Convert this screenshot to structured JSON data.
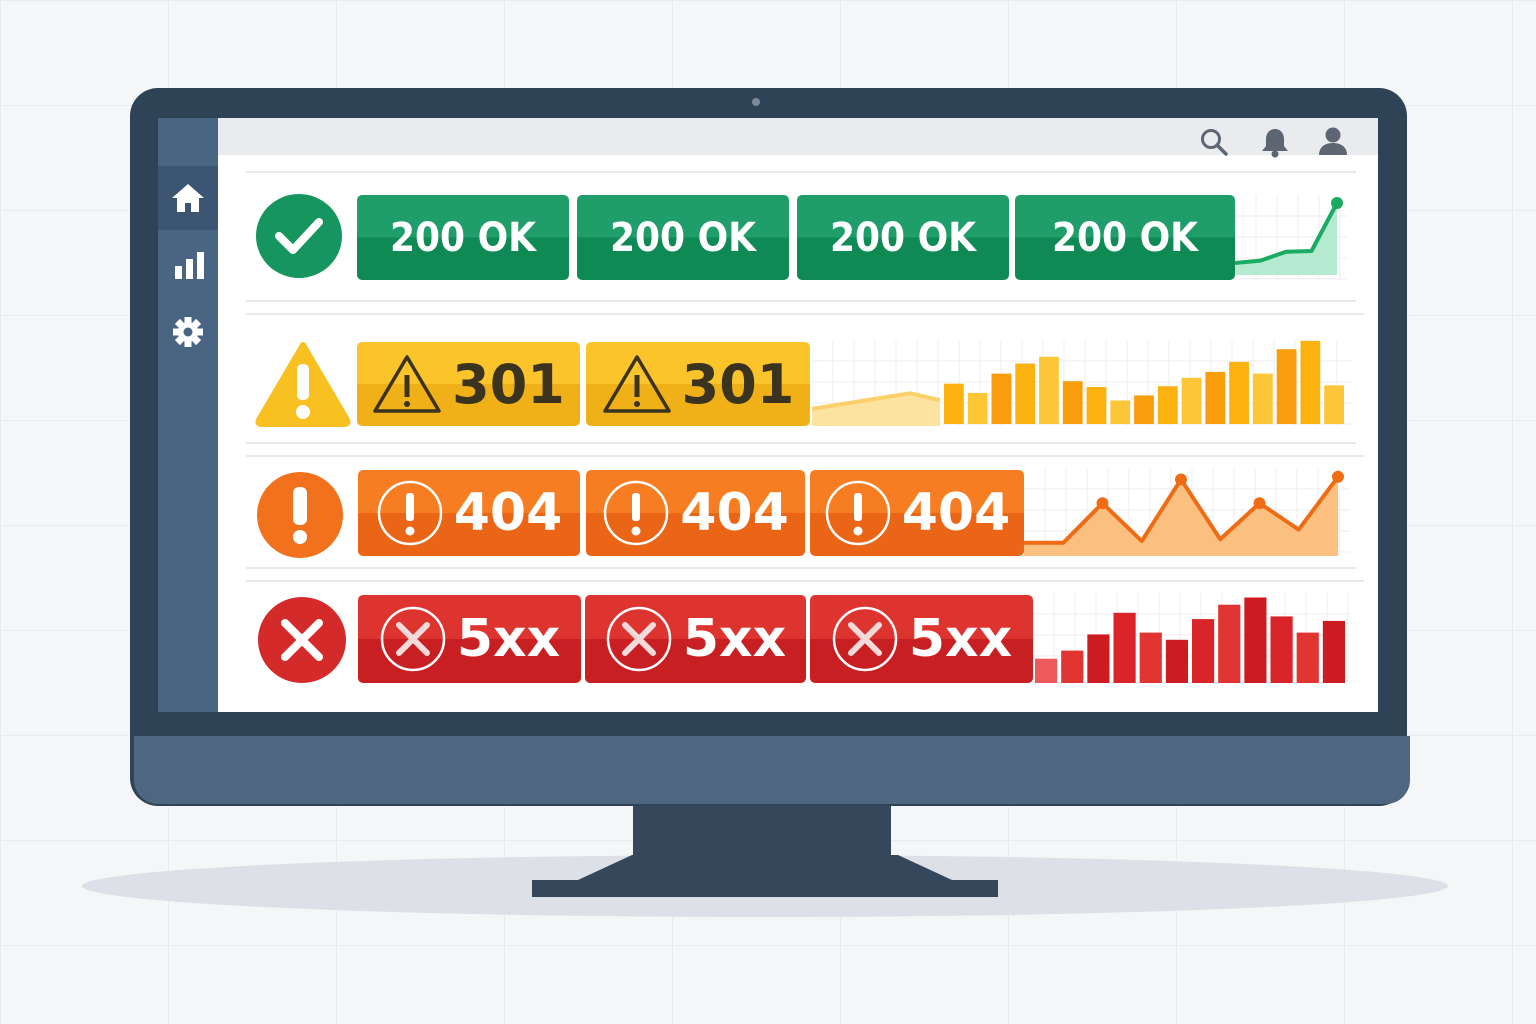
{
  "topbar": {
    "icons": [
      "search-icon",
      "bell-icon",
      "user-icon"
    ]
  },
  "sidebar": {
    "items": [
      {
        "icon": "home-icon"
      },
      {
        "icon": "bar-chart-icon"
      },
      {
        "icon": "gear-icon"
      }
    ]
  },
  "colors": {
    "success": "#17955f",
    "redirect": "#f6b91f",
    "client_error": "#f1711c",
    "server_error": "#d42a29"
  },
  "rows": [
    {
      "status": "success",
      "badges": [
        "200 OK",
        "200 OK",
        "200 OK",
        "200 OK"
      ],
      "trend": [
        15,
        18,
        29,
        30,
        90
      ]
    },
    {
      "status": "redirect",
      "badges": [
        "301",
        "301"
      ],
      "trend_area": [
        20,
        38,
        30
      ],
      "bars": [
        48,
        37,
        60,
        72,
        80,
        51,
        44,
        28,
        34,
        45,
        55,
        62,
        74,
        60,
        89,
        99,
        46
      ]
    },
    {
      "status": "client_error",
      "badges": [
        "404",
        "404",
        "404"
      ],
      "trend": [
        15,
        15,
        60,
        17,
        87,
        19,
        60,
        30,
        90
      ]
    },
    {
      "status": "server_error",
      "badges": [
        "5xx",
        "5xx",
        "5xx"
      ],
      "bars": [
        27,
        36,
        54,
        78,
        56,
        48,
        71,
        87,
        95,
        74,
        56,
        69
      ]
    }
  ]
}
